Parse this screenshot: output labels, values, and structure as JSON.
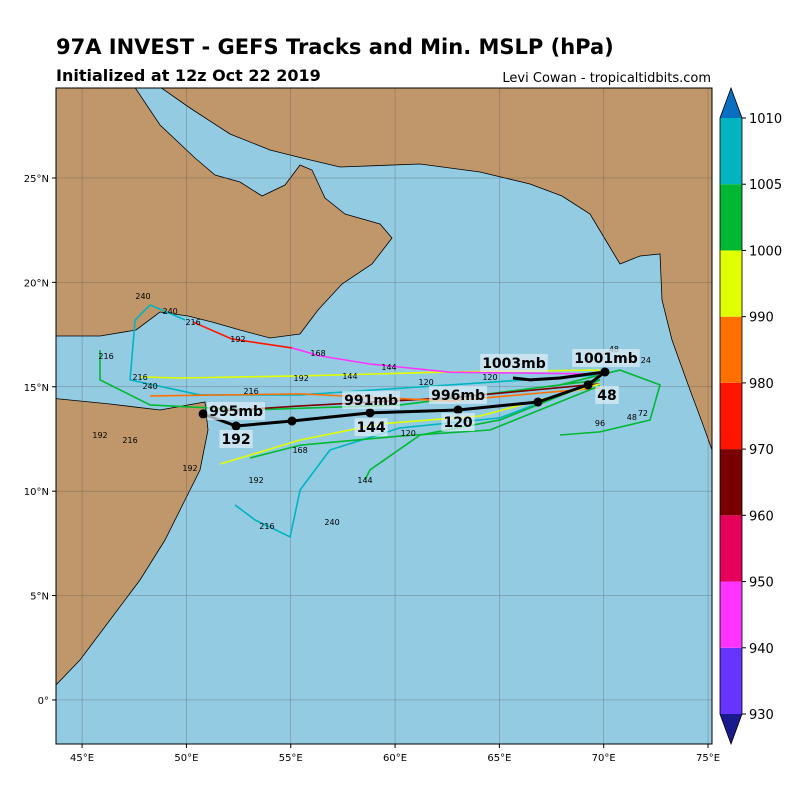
{
  "header": {
    "title": "97A INVEST - GEFS Tracks and Min. MSLP (hPa)",
    "subtitle": "Initialized at 12z Oct 22 2019",
    "credit": "Levi Cowan - tropicaltidbits.com"
  },
  "map": {
    "xlim": [
      43.75,
      75.19
    ],
    "ylim": [
      -2.11,
      29.31
    ],
    "xticks": [
      {
        "value": 45,
        "label": "45°E"
      },
      {
        "value": 50,
        "label": "50°E"
      },
      {
        "value": 55,
        "label": "55°E"
      },
      {
        "value": 60,
        "label": "60°E"
      },
      {
        "value": 65,
        "label": "65°E"
      },
      {
        "value": 70,
        "label": "70°E"
      },
      {
        "value": 75,
        "label": "75°E"
      }
    ],
    "yticks": [
      {
        "value": 0,
        "label": "0°"
      },
      {
        "value": 5,
        "label": "5°N"
      },
      {
        "value": 10,
        "label": "10°N"
      },
      {
        "value": 15,
        "label": "15°N"
      },
      {
        "value": 20,
        "label": "20°N"
      },
      {
        "value": 25,
        "label": "25°N"
      }
    ],
    "grid": true
  },
  "colorbar": {
    "ticks": [
      930,
      940,
      950,
      960,
      970,
      980,
      990,
      1000,
      1005,
      1010
    ],
    "colors": [
      "#6633ff",
      "#ff33ff",
      "#e6005c",
      "#7a0000",
      "#ff1500",
      "#ff7000",
      "#e0ff00",
      "#00b832",
      "#00b5c0"
    ],
    "under_color": "#1a1a8c",
    "over_color": "#0a6fc0"
  },
  "member_tracks": [
    {
      "color": "#00b5c0",
      "lon": [
        69.82,
        65.03,
        60.24,
        56.88,
        55.45,
        54.97,
        53.29,
        52.33
      ],
      "lat": [
        15.33,
        13.51,
        13.03,
        11.97,
        10.06,
        7.81,
        8.62,
        9.34
      ]
    },
    {
      "color": "#00b5c0",
      "lon": [
        69.82,
        62.63,
        55.45,
        50.65,
        47.3,
        47.54,
        48.26,
        49.94
      ],
      "lat": [
        15.57,
        15.09,
        14.61,
        14.61,
        15.33,
        18.2,
        18.92,
        18.2
      ]
    },
    {
      "color": "#e0ff00",
      "lon": [
        69.82,
        62.63,
        55.45,
        49.7,
        47.78
      ],
      "lat": [
        15.8,
        15.71,
        15.52,
        15.42,
        15.47
      ]
    },
    {
      "color": "#ff33ff",
      "lon": [
        69.82,
        62.63,
        58.8,
        56.4,
        55.06
      ],
      "lat": [
        15.61,
        15.7,
        16.09,
        16.48,
        16.86
      ]
    },
    {
      "color": "#ff1500",
      "lon": [
        55.06,
        52.18,
        50.32
      ],
      "lat": [
        16.86,
        17.29,
        18.1
      ]
    },
    {
      "color": "#00b832",
      "lon": [
        69.82,
        65.03,
        61.2,
        58.8,
        58.56
      ],
      "lat": [
        15.33,
        13.41,
        12.69,
        11.02,
        10.54
      ]
    },
    {
      "color": "#00b832",
      "lon": [
        69.82,
        60.24,
        53.05,
        48.26,
        45.86,
        45.86
      ],
      "lat": [
        15.33,
        14.13,
        13.89,
        14.13,
        15.33,
        16.76
      ]
    },
    {
      "color": "#00b832",
      "lon": [
        67.9,
        70.78,
        72.7,
        72.22,
        69.82,
        67.9
      ],
      "lat": [
        15.09,
        15.8,
        15.09,
        13.41,
        12.84,
        12.69
      ]
    },
    {
      "color": "#7a0000",
      "lon": [
        69.82,
        62.63,
        55.45,
        51.62
      ],
      "lat": [
        15.14,
        14.47,
        14.08,
        13.84
      ]
    },
    {
      "color": "#ff7000",
      "lon": [
        69.82,
        62.63,
        55.45,
        48.26
      ],
      "lat": [
        14.95,
        14.32,
        14.66,
        14.56
      ]
    },
    {
      "color": "#00b832",
      "lon": [
        69.82,
        64.55,
        60.24,
        55.45,
        53.05
      ],
      "lat": [
        15.05,
        12.93,
        12.64,
        12.2,
        11.59
      ]
    },
    {
      "color": "#e0ff00",
      "lon": [
        69.82,
        64.07,
        59.28,
        55.45,
        51.62
      ],
      "lat": [
        15.14,
        13.6,
        13.22,
        12.45,
        11.3
      ]
    }
  ],
  "member_labels": [
    {
      "text": "240",
      "lon": 56.98,
      "lat": 8.52
    },
    {
      "text": "216",
      "lon": 53.86,
      "lat": 8.33
    },
    {
      "text": "240",
      "lon": 47.92,
      "lat": 19.35
    },
    {
      "text": "240",
      "lon": 49.22,
      "lat": 18.63
    },
    {
      "text": "168",
      "lon": 56.31,
      "lat": 16.62
    },
    {
      "text": "192",
      "lon": 52.47,
      "lat": 17.29
    },
    {
      "text": "216",
      "lon": 50.32,
      "lat": 18.1
    },
    {
      "text": "144",
      "lon": 58.56,
      "lat": 10.54
    },
    {
      "text": "216",
      "lon": 46.15,
      "lat": 16.48
    },
    {
      "text": "72",
      "lon": 71.88,
      "lat": 13.75
    },
    {
      "text": "48",
      "lon": 71.35,
      "lat": 13.55
    },
    {
      "text": "144",
      "lon": 59.71,
      "lat": 15.95
    },
    {
      "text": "120",
      "lon": 61.49,
      "lat": 15.23
    },
    {
      "text": "120",
      "lon": 64.55,
      "lat": 15.47
    },
    {
      "text": "192",
      "lon": 45.86,
      "lat": 12.69
    },
    {
      "text": "216",
      "lon": 47.3,
      "lat": 12.45
    },
    {
      "text": "192",
      "lon": 50.17,
      "lat": 11.11
    },
    {
      "text": "216",
      "lon": 47.78,
      "lat": 15.47
    },
    {
      "text": "240",
      "lon": 48.26,
      "lat": 15.04
    },
    {
      "text": "192",
      "lon": 53.34,
      "lat": 10.54
    },
    {
      "text": "168",
      "lon": 55.45,
      "lat": 11.97
    },
    {
      "text": "144",
      "lon": 57.84,
      "lat": 15.52
    },
    {
      "text": "120",
      "lon": 60.63,
      "lat": 12.78
    },
    {
      "text": "96",
      "lon": 69.82,
      "lat": 13.26
    },
    {
      "text": "24",
      "lon": 72.02,
      "lat": 16.28
    },
    {
      "text": "48",
      "lon": 70.49,
      "lat": 16.81
    },
    {
      "text": "216",
      "lon": 53.1,
      "lat": 14.8
    },
    {
      "text": "192",
      "lon": 55.5,
      "lat": 15.42
    }
  ],
  "mean_track": {
    "color": "#000000",
    "lon": [
      70.06,
      69.25,
      66.85,
      63.02,
      58.8,
      55.06,
      52.38,
      50.8
    ],
    "lat": [
      15.71,
      15.09,
      14.27,
      13.89,
      13.75,
      13.36,
      13.12,
      13.7
    ],
    "labels": [
      {
        "text": "1001mb",
        "lon": 70.11,
        "lat": 16.38
      },
      {
        "text": "48",
        "lon": 70.16,
        "lat": 14.61
      },
      {
        "text": "1003mb",
        "lon": 65.7,
        "lat": 16.14
      },
      {
        "text": "996mb",
        "lon": 63.02,
        "lat": 14.61
      },
      {
        "text": "120",
        "lon": 63.02,
        "lat": 13.31
      },
      {
        "text": "991mb",
        "lon": 58.85,
        "lat": 14.37
      },
      {
        "text": "144",
        "lon": 58.85,
        "lat": 13.07
      },
      {
        "text": "995mb",
        "lon": 52.38,
        "lat": 13.84
      },
      {
        "text": "192",
        "lon": 52.38,
        "lat": 12.5
      }
    ]
  },
  "alt_track": {
    "lon": [
      65.65,
      66.48,
      67.9,
      70.06
    ],
    "lat": [
      15.42,
      15.33,
      15.42,
      15.71
    ]
  }
}
